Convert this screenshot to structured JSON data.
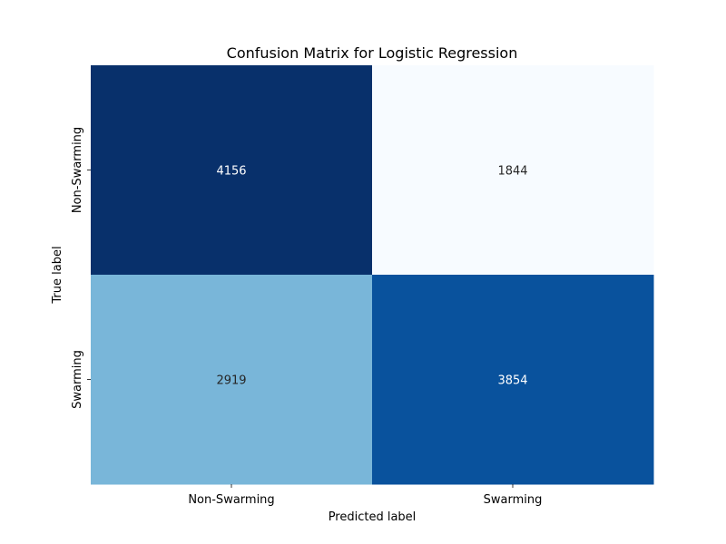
{
  "chart_data": {
    "type": "heatmap",
    "title": "Confusion Matrix for Logistic Regression",
    "xlabel": "Predicted label",
    "ylabel": "True label",
    "x_categories": [
      "Non-Swarming",
      "Swarming"
    ],
    "y_categories": [
      "Non-Swarming",
      "Swarming"
    ],
    "values": [
      [
        4156,
        1844
      ],
      [
        2919,
        3854
      ]
    ],
    "colormap": "Blues",
    "colorbar": false,
    "grid": false,
    "colors": {
      "max": "#08306b",
      "min": "#f7fbff",
      "text_dark": "#262626",
      "text_light": "#ffffff"
    }
  }
}
